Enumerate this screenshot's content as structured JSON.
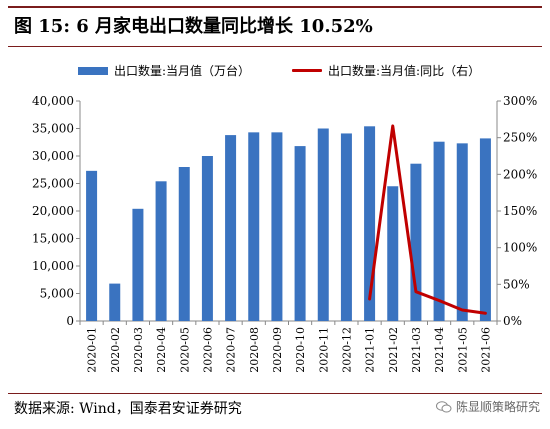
{
  "title": "图 15:  6 月家电出口数量同比增长 10.52%",
  "source": "数据来源:  Wind，国泰君安证券研究",
  "watermark": "陈显顺策略研究",
  "icons": {
    "watermark": "wechat-icon"
  },
  "colors": {
    "bar": "#3a73c0",
    "line": "#c00000",
    "rule": "#7a1c1c"
  },
  "chart_data": {
    "type": "bar",
    "categories": [
      "2020-01",
      "2020-02",
      "2020-03",
      "2020-04",
      "2020-05",
      "2020-06",
      "2020-07",
      "2020-08",
      "2020-09",
      "2020-10",
      "2020-11",
      "2020-12",
      "2021-01",
      "2021-02",
      "2021-03",
      "2021-04",
      "2021-05",
      "2021-06"
    ],
    "series": [
      {
        "name": "出口数量:当月值（万台）",
        "type": "bar",
        "axis": "left",
        "values": [
          27300,
          6800,
          20400,
          25400,
          28000,
          30000,
          33800,
          34300,
          34300,
          31800,
          35000,
          34100,
          35400,
          24500,
          28600,
          32600,
          32300,
          33200
        ]
      },
      {
        "name": "出口数量:当月值:同比（右）",
        "type": "line",
        "axis": "right",
        "values": [
          null,
          null,
          null,
          null,
          null,
          null,
          null,
          null,
          null,
          null,
          null,
          null,
          30,
          266,
          40,
          28,
          15,
          10.52
        ]
      }
    ],
    "y_left": {
      "min": 0,
      "max": 40000,
      "ticks": [
        "0",
        "5,000",
        "10,000",
        "15,000",
        "20,000",
        "25,000",
        "30,000",
        "35,000",
        "40,000"
      ]
    },
    "y_right": {
      "min": 0,
      "max": 300,
      "ticks": [
        "0%",
        "50%",
        "100%",
        "150%",
        "200%",
        "250%",
        "300%"
      ]
    },
    "legend": "top",
    "grid": false
  }
}
